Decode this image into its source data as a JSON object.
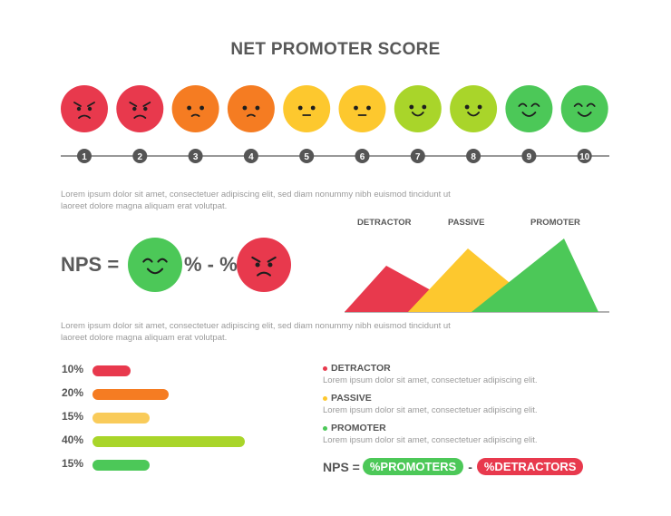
{
  "title": "NET PROMOTER SCORE",
  "scale": {
    "faces": [
      {
        "number": "1",
        "mood": "angry",
        "color": "#e8394d"
      },
      {
        "number": "2",
        "mood": "angry",
        "color": "#e8394d"
      },
      {
        "number": "3",
        "mood": "sad",
        "color": "#f57c22"
      },
      {
        "number": "4",
        "mood": "sad",
        "color": "#f57c22"
      },
      {
        "number": "5",
        "mood": "neutral",
        "color": "#fdc82e"
      },
      {
        "number": "6",
        "mood": "neutral",
        "color": "#fdc82e"
      },
      {
        "number": "7",
        "mood": "smile",
        "color": "#a9d52a"
      },
      {
        "number": "8",
        "mood": "smile",
        "color": "#a9d52a"
      },
      {
        "number": "9",
        "mood": "happy",
        "color": "#4cc858"
      },
      {
        "number": "10",
        "mood": "happy",
        "color": "#4cc858"
      }
    ]
  },
  "lorem1": "Lorem ipsum dolor sit amet, consectetuer adipiscing elit, sed diam nonummy nibh euismod tincidunt ut laoreet dolore magna aliquam erat volutpat.",
  "lorem2": "Lorem ipsum dolor sit amet, consectetuer adipiscing elit, sed diam nonummy nibh euismod tincidunt ut laoreet dolore magna aliquam erat volutpat.",
  "nps_equation": {
    "label": "NPS =",
    "operator": "% - %",
    "left_face": {
      "mood": "happy",
      "color": "#4cc858"
    },
    "right_face": {
      "mood": "angry",
      "color": "#e8394d"
    }
  },
  "mountains": {
    "detractor": {
      "label": "DETRACTOR",
      "color": "#e8394d"
    },
    "passive": {
      "label": "PASSIVE",
      "color": "#fdc82e"
    },
    "promoter": {
      "label": "PROMOTER",
      "color": "#4cc858"
    }
  },
  "bars": [
    {
      "pct": "10%",
      "value": 10,
      "color": "#e8394d"
    },
    {
      "pct": "20%",
      "value": 20,
      "color": "#f57c22"
    },
    {
      "pct": "15%",
      "value": 15,
      "color": "#f9cb5a"
    },
    {
      "pct": "40%",
      "value": 40,
      "color": "#a9d52a"
    },
    {
      "pct": "15%",
      "value": 15,
      "color": "#4cc858"
    }
  ],
  "legend": [
    {
      "title": "DETRACTOR",
      "color": "#e8394d",
      "desc": "Lorem ipsum dolor sit amet, consectetuer adipiscing elit."
    },
    {
      "title": "PASSIVE",
      "color": "#fdc82e",
      "desc": "Lorem ipsum dolor sit amet, consectetuer adipiscing elit."
    },
    {
      "title": "PROMOTER",
      "color": "#4cc858",
      "desc": "Lorem ipsum dolor sit amet, consectetuer adipiscing elit."
    }
  ],
  "formula": {
    "label": "NPS =",
    "promoters": "%PROMOTERS",
    "dash": "-",
    "detractors": "%DETRACTORS",
    "promoters_color": "#4cc858",
    "detractors_color": "#e8394d"
  }
}
